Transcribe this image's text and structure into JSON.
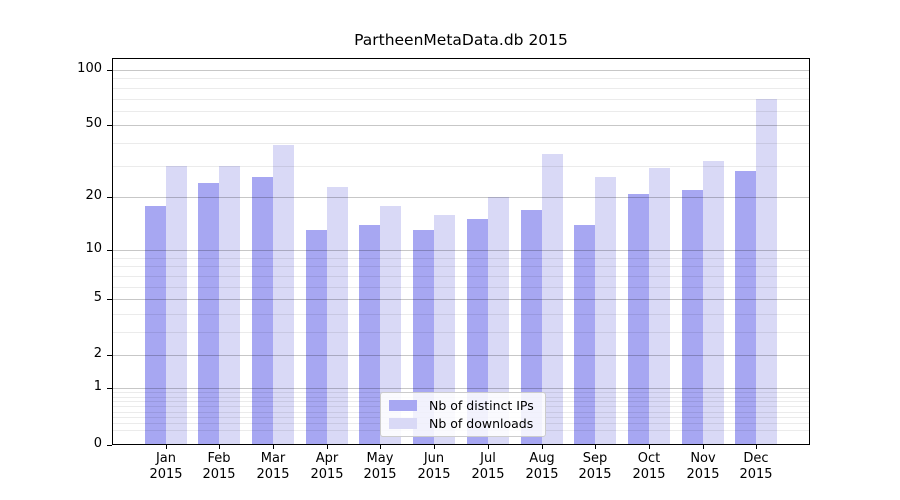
{
  "figure": {
    "title": "PartheenMetaData.db 2015",
    "background": "#ffffff"
  },
  "chart_data": {
    "type": "bar",
    "title": "PartheenMetaData.db 2015",
    "categories": [
      "Jan",
      "Feb",
      "Mar",
      "Apr",
      "May",
      "Jun",
      "Jul",
      "Aug",
      "Sep",
      "Oct",
      "Nov",
      "Dec"
    ],
    "category_sublabel": "2015",
    "series": [
      {
        "name": "Nb of distinct IPs",
        "color": "#a7a7f2",
        "values": [
          18,
          24,
          26,
          13,
          14,
          13,
          15,
          17,
          14,
          21,
          22,
          28
        ]
      },
      {
        "name": "Nb of downloads",
        "color": "#d9d9f6",
        "values": [
          30,
          30,
          39,
          23,
          18,
          16,
          20,
          35,
          26,
          29,
          32,
          70
        ]
      }
    ],
    "xlabel": "",
    "ylabel": "",
    "yscale": "log(1+y)",
    "ylim": [
      0,
      116
    ],
    "yticks_major": [
      0,
      1,
      2,
      5,
      10,
      20,
      50,
      100
    ],
    "ytick_labels": [
      "0",
      "1",
      "2",
      "5",
      "10",
      "20",
      "50",
      "100"
    ],
    "yticks_minor": [
      0.2,
      0.3,
      0.4,
      0.5,
      0.6,
      0.7,
      0.8,
      0.9,
      3,
      4,
      6,
      7,
      8,
      9,
      30,
      40,
      60,
      70,
      80,
      90
    ],
    "grid": "horizontal major+minor, drawn over bars",
    "legend_position": "lower center",
    "bar_width_fraction": 0.4
  },
  "legend": {
    "labels": [
      "Nb of distinct IPs",
      "Nb of downloads"
    ]
  },
  "colors": {
    "axis_spine": "#000000",
    "text": "#000000",
    "grid_major": "rgba(0,0,0,0.22)",
    "grid_minor": "rgba(0,0,0,0.08)",
    "legend_border": "#cccccc",
    "legend_background": "rgba(255,255,255,0.85)"
  }
}
